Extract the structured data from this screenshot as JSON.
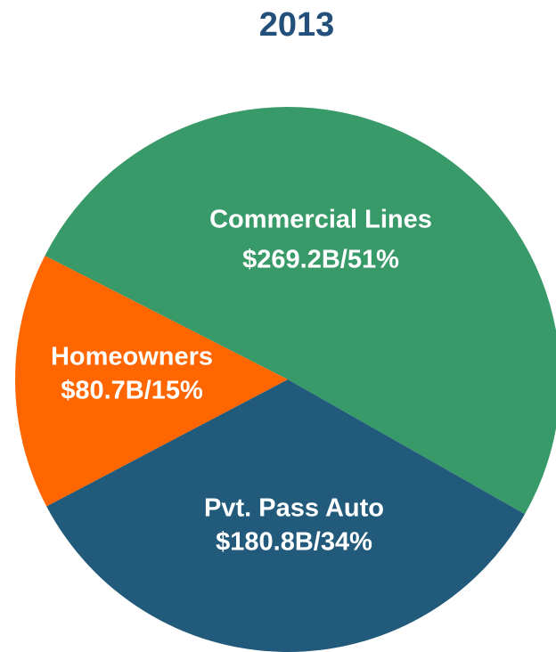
{
  "chart_data": {
    "type": "pie",
    "title": "2013",
    "categories": [
      "Commercial Lines",
      "Pvt. Pass Auto",
      "Homeowners"
    ],
    "values": [
      269.2,
      180.8,
      80.7
    ],
    "value_labels": [
      "$269.2B/51%",
      "$180.8B/34%",
      "$80.7B/15%"
    ],
    "colors": [
      "#389a69",
      "#225a7b",
      "#ff6600"
    ]
  }
}
